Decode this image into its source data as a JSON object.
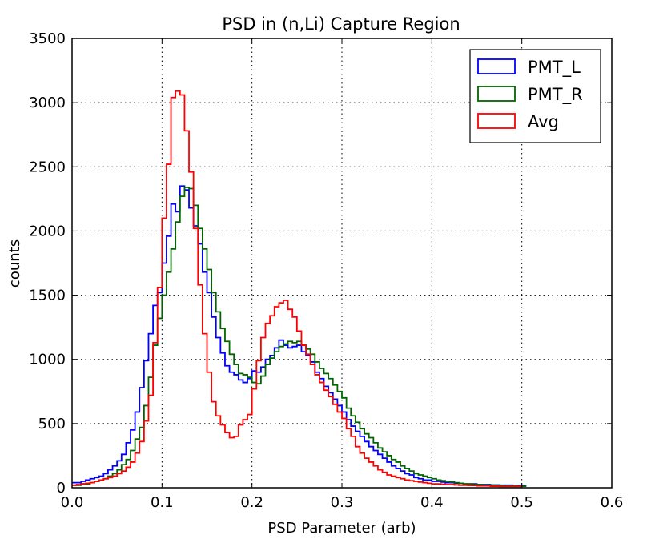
{
  "chart_data": {
    "type": "line",
    "style": "step-histogram",
    "title": "PSD in (n,Li) Capture Region",
    "xlabel": "PSD Parameter (arb)",
    "ylabel": "counts",
    "xlim": [
      0.0,
      0.6
    ],
    "ylim": [
      0,
      3500
    ],
    "xticks": [
      "0.0",
      "0.1",
      "0.2",
      "0.3",
      "0.4",
      "0.5",
      "0.6"
    ],
    "yticks": [
      "0",
      "500",
      "1000",
      "1500",
      "2000",
      "2500",
      "3000",
      "3500"
    ],
    "grid": true,
    "legend_position": "top-right",
    "bin_width": 0.005,
    "x_start": 0.0,
    "series": [
      {
        "name": "PMT_L",
        "color": "#0000ff",
        "values": [
          40,
          40,
          50,
          60,
          70,
          80,
          90,
          110,
          140,
          170,
          210,
          260,
          350,
          450,
          590,
          780,
          990,
          1200,
          1420,
          1520,
          1750,
          1960,
          2210,
          2150,
          2350,
          2320,
          2180,
          2040,
          1900,
          1680,
          1520,
          1330,
          1170,
          1050,
          950,
          900,
          880,
          840,
          820,
          850,
          910,
          900,
          940,
          1000,
          1030,
          1090,
          1150,
          1110,
          1090,
          1100,
          1110,
          1060,
          1030,
          980,
          900,
          850,
          790,
          740,
          690,
          640,
          590,
          530,
          480,
          440,
          400,
          360,
          320,
          290,
          260,
          230,
          200,
          170,
          150,
          130,
          110,
          100,
          80,
          70,
          60,
          60,
          50,
          50,
          45,
          40,
          40,
          35,
          35,
          30,
          30,
          30,
          25,
          25,
          25,
          22,
          22,
          20,
          20,
          20,
          18,
          18,
          15
        ]
      },
      {
        "name": "PMT_R",
        "color": "#006600",
        "values": [
          20,
          20,
          30,
          30,
          40,
          50,
          60,
          70,
          90,
          110,
          140,
          180,
          220,
          290,
          380,
          470,
          640,
          860,
          1110,
          1320,
          1500,
          1680,
          1860,
          2070,
          2270,
          2340,
          2330,
          2200,
          2020,
          1860,
          1700,
          1520,
          1370,
          1240,
          1140,
          1040,
          960,
          890,
          880,
          860,
          820,
          810,
          870,
          960,
          1010,
          1060,
          1100,
          1120,
          1140,
          1130,
          1140,
          1110,
          1080,
          1040,
          980,
          930,
          890,
          850,
          800,
          750,
          700,
          620,
          560,
          510,
          460,
          420,
          390,
          350,
          310,
          280,
          250,
          220,
          200,
          170,
          150,
          130,
          110,
          100,
          90,
          80,
          70,
          60,
          55,
          50,
          45,
          40,
          35,
          30,
          30,
          25,
          25,
          20,
          20,
          20,
          18,
          18,
          15,
          15,
          15,
          12,
          12
        ]
      },
      {
        "name": "Avg",
        "color": "#ff0000",
        "values": [
          20,
          25,
          30,
          35,
          40,
          50,
          60,
          70,
          80,
          90,
          110,
          130,
          160,
          200,
          270,
          360,
          520,
          720,
          1130,
          1560,
          2100,
          2520,
          3040,
          3090,
          3060,
          2780,
          2460,
          2020,
          1580,
          1200,
          900,
          670,
          560,
          490,
          430,
          390,
          400,
          490,
          530,
          570,
          770,
          990,
          1170,
          1280,
          1340,
          1410,
          1440,
          1460,
          1390,
          1330,
          1220,
          1110,
          1040,
          960,
          880,
          820,
          760,
          710,
          650,
          590,
          540,
          460,
          400,
          320,
          270,
          230,
          200,
          170,
          140,
          120,
          100,
          90,
          80,
          70,
          60,
          55,
          50,
          45,
          40,
          35,
          30,
          30,
          28,
          25,
          25,
          22,
          20,
          20,
          18,
          18,
          15,
          15,
          15,
          12,
          12,
          10,
          10,
          10,
          10,
          10
        ]
      }
    ]
  }
}
